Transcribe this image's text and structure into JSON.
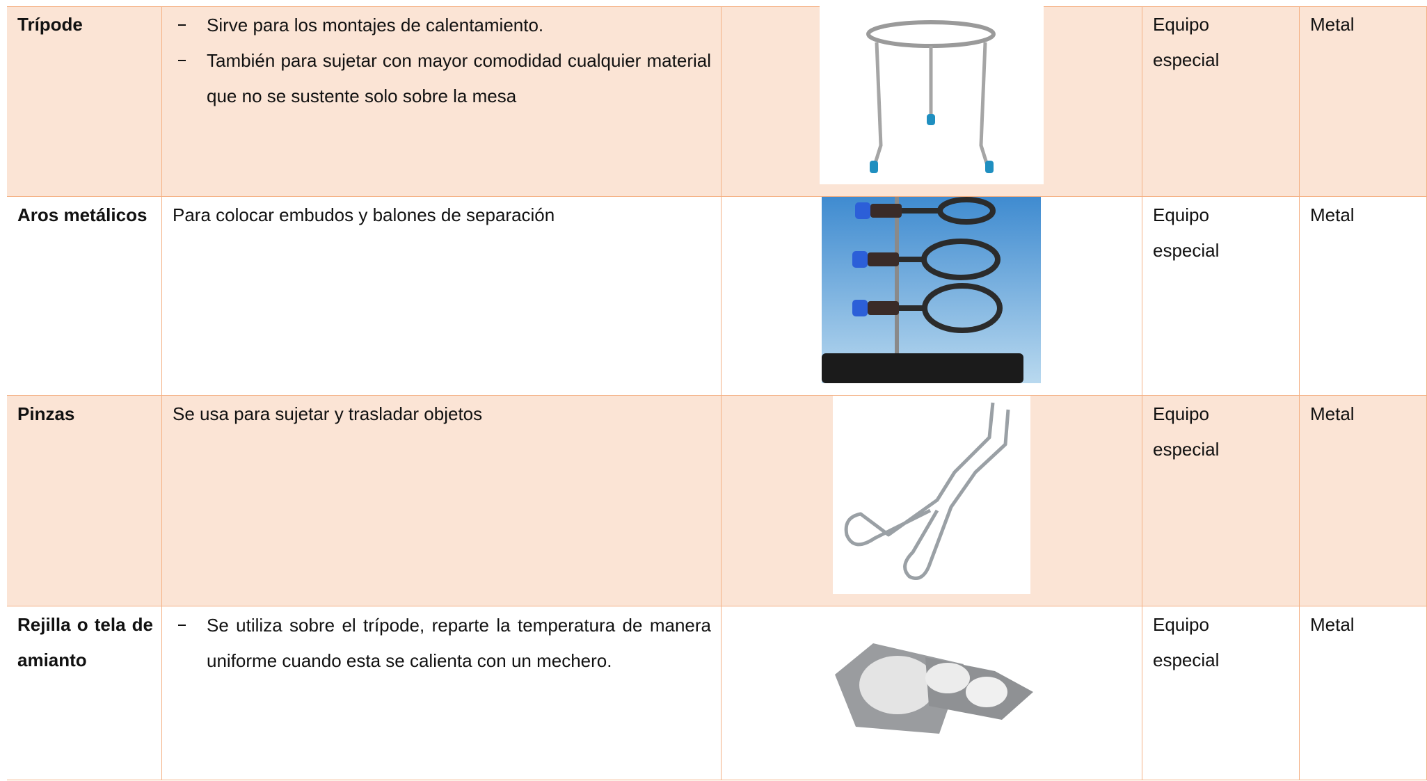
{
  "table": {
    "rows": [
      {
        "name": "Trípode",
        "description": [
          "Sirve para los montajes de calentamiento.",
          "También para sujetar con mayor comodidad cualquier material que no se sustente solo sobre la mesa"
        ],
        "type": "Equipo especial",
        "material": "Metal"
      },
      {
        "name": "Aros metálicos",
        "description": "Para colocar embudos y balones de separación",
        "type": "Equipo especial",
        "material": "Metal"
      },
      {
        "name": "Pinzas",
        "description": "Se usa para sujetar y trasladar objetos",
        "type": "Equipo especial",
        "material": "Metal"
      },
      {
        "name": "Rejilla o tela de amianto",
        "description": [
          "Se utiliza sobre el trípode, reparte la temperatura de manera uniforme cuando esta se calienta con un mechero."
        ],
        "type": "Equipo especial",
        "material": "Metal"
      }
    ]
  }
}
